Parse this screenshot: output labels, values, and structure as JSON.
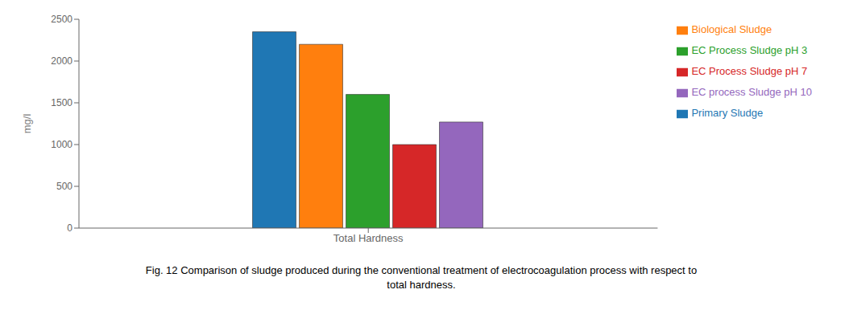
{
  "chart_data": {
    "type": "bar",
    "categories": [
      "Total Hardness"
    ],
    "series": [
      {
        "name": "Primary Sludge",
        "color": "#1f77b4",
        "values": [
          2350
        ]
      },
      {
        "name": "Biological Sludge",
        "color": "#ff7f0e",
        "values": [
          2200
        ]
      },
      {
        "name": "EC Process  Sludge pH 3",
        "color": "#2ca02c",
        "values": [
          1600
        ]
      },
      {
        "name": "EC Process Sludge pH 7",
        "color": "#d62728",
        "values": [
          1000
        ]
      },
      {
        "name": "EC process Sludge pH 10",
        "color": "#9467bd",
        "values": [
          1270
        ]
      }
    ],
    "ylabel": "mg/l",
    "ylim": [
      0,
      2500
    ],
    "yticks": [
      0,
      500,
      1000,
      1500,
      2000,
      2500
    ],
    "grid": false,
    "legend": "right",
    "caption": [
      "Fig. 12 Comparison of sludge produced during the conventional treatment of electrocoagulation process with respect to",
      "total hardness."
    ]
  }
}
